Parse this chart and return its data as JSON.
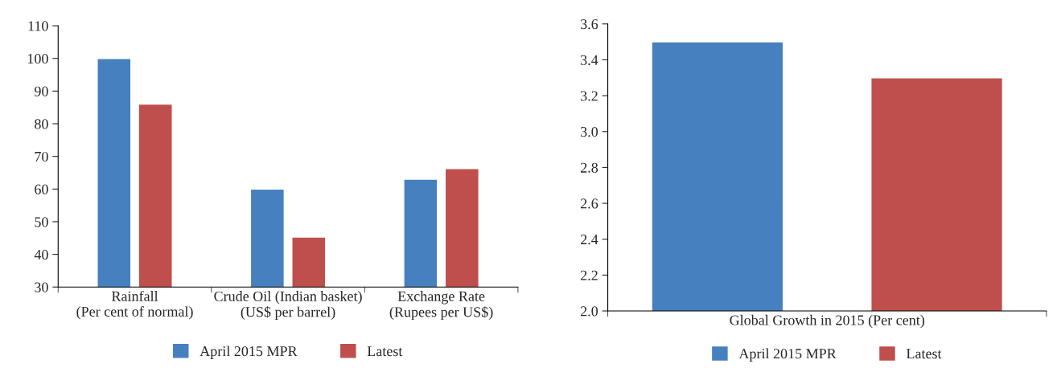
{
  "chart_data": [
    {
      "type": "bar",
      "categories": [
        "Rainfall\n(Per cent of normal)",
        "Crude Oil (Indian basket)\n(US$ per barrel)",
        "Exchange Rate\n(Rupees per US$)"
      ],
      "series": [
        {
          "name": "April 2015 MPR",
          "color": "#4680bf",
          "values": [
            100,
            60,
            63
          ]
        },
        {
          "name": "Latest",
          "color": "#be4f4c",
          "values": [
            86,
            45.3,
            66.3
          ]
        }
      ],
      "ylim": [
        30,
        110
      ],
      "yticks": [
        30,
        40,
        50,
        60,
        70,
        80,
        90,
        100,
        110
      ],
      "grid": false,
      "legend": "bottom"
    },
    {
      "type": "bar",
      "categories": [
        "Global Growth in 2015 (Per cent)"
      ],
      "series": [
        {
          "name": "April 2015 MPR",
          "color": "#4680bf",
          "values": [
            3.5
          ]
        },
        {
          "name": "Latest",
          "color": "#be4f4c",
          "values": [
            3.3
          ]
        }
      ],
      "ylim": [
        2.0,
        3.6
      ],
      "yticks": [
        {
          "value": 2.0,
          "label": "2.0"
        },
        {
          "value": 2.2,
          "label": "2.2"
        },
        {
          "value": 2.4,
          "label": "2.4"
        },
        {
          "value": 2.6,
          "label": "2.6"
        },
        {
          "value": 2.8,
          "label": "2.8"
        },
        {
          "value": 3.0,
          "label": "3.0"
        },
        {
          "value": 3.2,
          "label": "3.2"
        },
        {
          "value": 3.4,
          "label": "3.4"
        },
        {
          "value": 3.6,
          "label": "3.6"
        }
      ],
      "grid": false,
      "legend": "bottom"
    }
  ]
}
